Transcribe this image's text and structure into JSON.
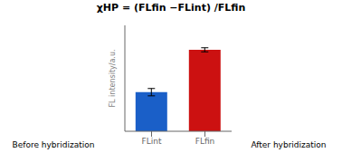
{
  "chart_data": {
    "type": "bar",
    "title": "χHP = (FLfin −FLint) /FLfin",
    "categories": [
      "FLint",
      "FLfin"
    ],
    "values": [
      0.48,
      1.0
    ],
    "errors": [
      0.045,
      0.025
    ],
    "colors": [
      "#1a5fc8",
      "#cc1111"
    ],
    "y_label": "FL intensity/a.u.",
    "ylim": [
      0,
      1.3
    ],
    "tick_labels": "x",
    "grid": false,
    "annotations": [
      "Before hybridization",
      "After hybridization"
    ]
  }
}
